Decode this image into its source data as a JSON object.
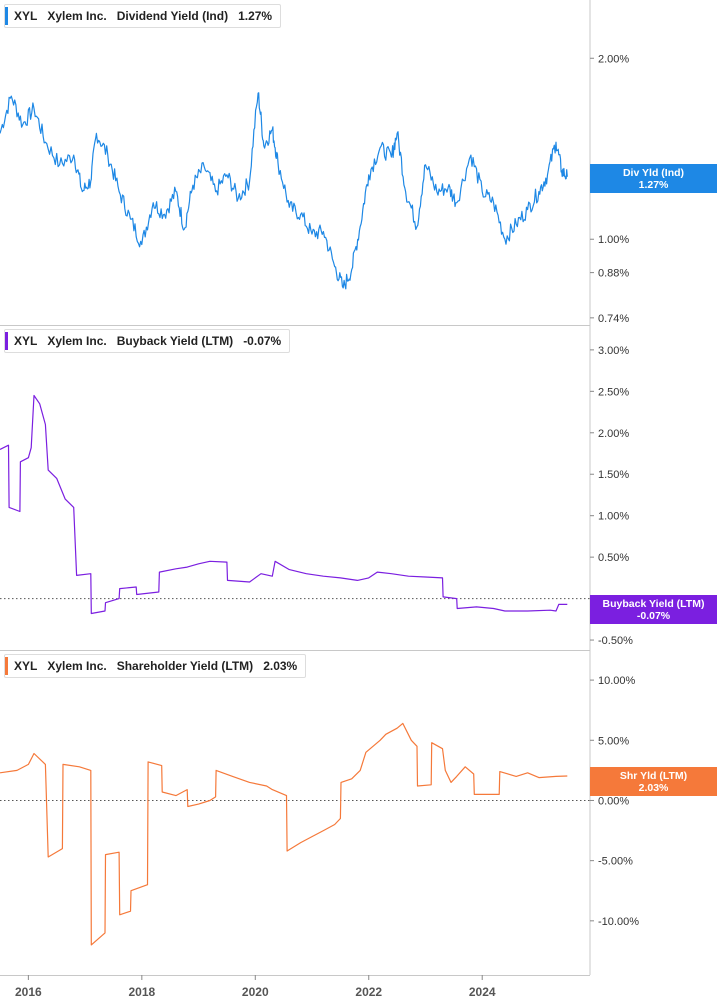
{
  "colors": {
    "dividend": "#1e88e5",
    "buyback": "#7b1fe0",
    "shareholder": "#f5793a"
  },
  "x_axis": {
    "ticks": [
      "2016",
      "2018",
      "2020",
      "2022",
      "2024"
    ]
  },
  "panels": [
    {
      "id": "dividend",
      "legend": {
        "ticker": "XYL",
        "company": "Xylem Inc.",
        "metric": "Dividend Yield (Ind)",
        "value": "1.27%"
      },
      "tag": {
        "label": "Div Yld (Ind)",
        "value": "1.27%"
      },
      "y_ticks": [
        "2.00%",
        "1.00%",
        "0.88%",
        "0.74%"
      ]
    },
    {
      "id": "buyback",
      "legend": {
        "ticker": "XYL",
        "company": "Xylem Inc.",
        "metric": "Buyback Yield (LTM)",
        "value": "-0.07%"
      },
      "tag": {
        "label": "Buyback Yield (LTM)",
        "value": "-0.07%"
      },
      "y_ticks": [
        "3.00%",
        "2.50%",
        "2.00%",
        "1.50%",
        "1.00%",
        "0.50%",
        "-0.50%"
      ]
    },
    {
      "id": "shareholder",
      "legend": {
        "ticker": "XYL",
        "company": "Xylem Inc.",
        "metric": "Shareholder Yield (LTM)",
        "value": "2.03%"
      },
      "tag": {
        "label": "Shr Yld (LTM)",
        "value": "2.03%"
      },
      "y_ticks": [
        "10.00%",
        "5.00%",
        "0.00%",
        "-5.00%",
        "-10.00%"
      ]
    }
  ],
  "chart_data": [
    {
      "type": "line",
      "ylim": [
        0.72,
        2.5
      ],
      "y_scale": "log",
      "series": [
        {
          "name": "Dividend Yield (Ind)",
          "color": "#1e88e5",
          "points": [
            [
              2015.5,
              1.5
            ],
            [
              2015.7,
              1.73
            ],
            [
              2015.9,
              1.55
            ],
            [
              2016.1,
              1.65
            ],
            [
              2016.3,
              1.45
            ],
            [
              2016.55,
              1.33
            ],
            [
              2016.8,
              1.38
            ],
            [
              2016.95,
              1.2
            ],
            [
              2017.1,
              1.25
            ],
            [
              2017.2,
              1.5
            ],
            [
              2017.4,
              1.38
            ],
            [
              2017.6,
              1.2
            ],
            [
              2017.8,
              1.08
            ],
            [
              2018.0,
              0.98
            ],
            [
              2018.2,
              1.15
            ],
            [
              2018.4,
              1.1
            ],
            [
              2018.6,
              1.2
            ],
            [
              2018.75,
              1.04
            ],
            [
              2018.9,
              1.23
            ],
            [
              2019.1,
              1.32
            ],
            [
              2019.3,
              1.2
            ],
            [
              2019.5,
              1.28
            ],
            [
              2019.7,
              1.17
            ],
            [
              2019.9,
              1.25
            ],
            [
              2020.05,
              1.75
            ],
            [
              2020.15,
              1.43
            ],
            [
              2020.3,
              1.52
            ],
            [
              2020.4,
              1.34
            ],
            [
              2020.6,
              1.13
            ],
            [
              2020.8,
              1.1
            ],
            [
              2021.0,
              1.02
            ],
            [
              2021.2,
              1.03
            ],
            [
              2021.4,
              0.9
            ],
            [
              2021.55,
              0.83
            ],
            [
              2021.7,
              0.89
            ],
            [
              2021.85,
              1.05
            ],
            [
              2022.0,
              1.28
            ],
            [
              2022.2,
              1.42
            ],
            [
              2022.4,
              1.37
            ],
            [
              2022.5,
              1.5
            ],
            [
              2022.65,
              1.2
            ],
            [
              2022.85,
              1.05
            ],
            [
              2023.0,
              1.33
            ],
            [
              2023.2,
              1.2
            ],
            [
              2023.4,
              1.22
            ],
            [
              2023.55,
              1.15
            ],
            [
              2023.8,
              1.38
            ],
            [
              2024.0,
              1.2
            ],
            [
              2024.2,
              1.15
            ],
            [
              2024.4,
              1.0
            ],
            [
              2024.6,
              1.06
            ],
            [
              2024.8,
              1.12
            ],
            [
              2025.0,
              1.2
            ],
            [
              2025.15,
              1.28
            ],
            [
              2025.3,
              1.45
            ],
            [
              2025.4,
              1.3
            ],
            [
              2025.5,
              1.27
            ]
          ]
        }
      ]
    },
    {
      "type": "line",
      "ylim": [
        -0.62,
        3.3
      ],
      "series": [
        {
          "name": "Buyback Yield (LTM)",
          "color": "#7b1fe0",
          "points": [
            [
              2015.5,
              1.8
            ],
            [
              2015.65,
              1.85
            ],
            [
              2015.66,
              1.1
            ],
            [
              2015.85,
              1.05
            ],
            [
              2015.86,
              1.65
            ],
            [
              2016.0,
              1.7
            ],
            [
              2016.05,
              1.82
            ],
            [
              2016.1,
              2.45
            ],
            [
              2016.2,
              2.35
            ],
            [
              2016.3,
              2.1
            ],
            [
              2016.35,
              1.55
            ],
            [
              2016.5,
              1.45
            ],
            [
              2016.65,
              1.2
            ],
            [
              2016.8,
              1.1
            ],
            [
              2016.85,
              0.28
            ],
            [
              2017.1,
              0.3
            ],
            [
              2017.11,
              -0.18
            ],
            [
              2017.35,
              -0.15
            ],
            [
              2017.36,
              -0.05
            ],
            [
              2017.6,
              0.0
            ],
            [
              2017.61,
              0.12
            ],
            [
              2017.9,
              0.14
            ],
            [
              2017.91,
              0.05
            ],
            [
              2018.3,
              0.08
            ],
            [
              2018.31,
              0.32
            ],
            [
              2018.6,
              0.36
            ],
            [
              2018.8,
              0.38
            ],
            [
              2019.0,
              0.42
            ],
            [
              2019.2,
              0.45
            ],
            [
              2019.5,
              0.44
            ],
            [
              2019.51,
              0.22
            ],
            [
              2019.9,
              0.2
            ],
            [
              2020.1,
              0.3
            ],
            [
              2020.3,
              0.27
            ],
            [
              2020.35,
              0.45
            ],
            [
              2020.6,
              0.35
            ],
            [
              2020.9,
              0.3
            ],
            [
              2021.2,
              0.27
            ],
            [
              2021.5,
              0.25
            ],
            [
              2021.8,
              0.22
            ],
            [
              2022.0,
              0.25
            ],
            [
              2022.15,
              0.32
            ],
            [
              2022.4,
              0.3
            ],
            [
              2022.7,
              0.27
            ],
            [
              2023.0,
              0.26
            ],
            [
              2023.3,
              0.25
            ],
            [
              2023.31,
              0.02
            ],
            [
              2023.55,
              0.0
            ],
            [
              2023.56,
              -0.12
            ],
            [
              2023.9,
              -0.1
            ],
            [
              2024.2,
              -0.12
            ],
            [
              2024.4,
              -0.15
            ],
            [
              2024.8,
              -0.15
            ],
            [
              2025.2,
              -0.14
            ],
            [
              2025.3,
              -0.15
            ],
            [
              2025.35,
              -0.07
            ],
            [
              2025.5,
              -0.07
            ]
          ]
        }
      ]
    },
    {
      "type": "line",
      "ylim": [
        -14.5,
        12.5
      ],
      "series": [
        {
          "name": "Shareholder Yield (LTM)",
          "color": "#f5793a",
          "points": [
            [
              2015.5,
              2.3
            ],
            [
              2015.8,
              2.5
            ],
            [
              2016.0,
              3.0
            ],
            [
              2016.1,
              3.9
            ],
            [
              2016.3,
              3.0
            ],
            [
              2016.35,
              -4.7
            ],
            [
              2016.6,
              -4.0
            ],
            [
              2016.61,
              3.0
            ],
            [
              2016.9,
              2.8
            ],
            [
              2017.1,
              2.5
            ],
            [
              2017.11,
              -12.0
            ],
            [
              2017.35,
              -11.0
            ],
            [
              2017.36,
              -4.5
            ],
            [
              2017.6,
              -4.3
            ],
            [
              2017.61,
              -9.5
            ],
            [
              2017.8,
              -9.2
            ],
            [
              2017.81,
              -7.5
            ],
            [
              2018.1,
              -7.0
            ],
            [
              2018.11,
              3.2
            ],
            [
              2018.35,
              2.9
            ],
            [
              2018.36,
              0.7
            ],
            [
              2018.6,
              0.4
            ],
            [
              2018.8,
              0.9
            ],
            [
              2018.81,
              -0.5
            ],
            [
              2019.0,
              -0.3
            ],
            [
              2019.2,
              0.0
            ],
            [
              2019.3,
              0.3
            ],
            [
              2019.31,
              2.5
            ],
            [
              2019.6,
              2.0
            ],
            [
              2019.9,
              1.5
            ],
            [
              2020.2,
              1.2
            ],
            [
              2020.3,
              0.9
            ],
            [
              2020.55,
              0.4
            ],
            [
              2020.56,
              -4.2
            ],
            [
              2020.8,
              -3.5
            ],
            [
              2021.0,
              -3.0
            ],
            [
              2021.2,
              -2.5
            ],
            [
              2021.4,
              -2.0
            ],
            [
              2021.5,
              -1.5
            ],
            [
              2021.51,
              1.5
            ],
            [
              2021.7,
              1.8
            ],
            [
              2021.85,
              2.5
            ],
            [
              2021.95,
              4.0
            ],
            [
              2022.2,
              5.0
            ],
            [
              2022.3,
              5.5
            ],
            [
              2022.5,
              6.0
            ],
            [
              2022.6,
              6.4
            ],
            [
              2022.75,
              5.0
            ],
            [
              2022.85,
              4.5
            ],
            [
              2022.86,
              1.2
            ],
            [
              2023.1,
              1.3
            ],
            [
              2023.11,
              4.8
            ],
            [
              2023.3,
              4.3
            ],
            [
              2023.35,
              2.5
            ],
            [
              2023.45,
              1.5
            ],
            [
              2023.55,
              2.0
            ],
            [
              2023.7,
              2.8
            ],
            [
              2023.85,
              2.2
            ],
            [
              2023.86,
              0.5
            ],
            [
              2024.3,
              0.5
            ],
            [
              2024.31,
              2.4
            ],
            [
              2024.6,
              2.0
            ],
            [
              2024.8,
              2.3
            ],
            [
              2025.0,
              1.9
            ],
            [
              2025.3,
              2.0
            ],
            [
              2025.5,
              2.03
            ]
          ]
        }
      ]
    }
  ]
}
